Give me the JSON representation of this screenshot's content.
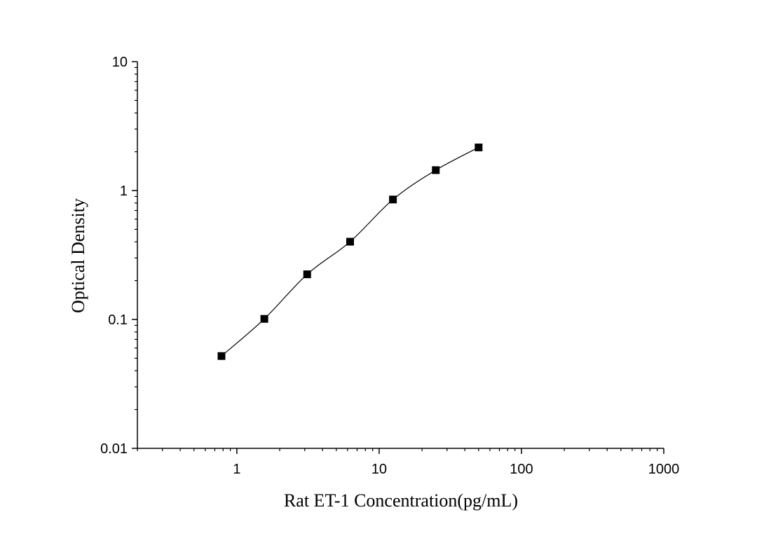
{
  "chart_data": {
    "type": "scatter",
    "title": "",
    "xlabel": "Rat ET-1 Concentration(pg/mL)",
    "ylabel": "Optical Density",
    "x_scale": "log",
    "y_scale": "log",
    "xlim": [
      0.2,
      1000
    ],
    "ylim": [
      0.01,
      10
    ],
    "x_ticks": [
      {
        "value": 1,
        "label": "1"
      },
      {
        "value": 10,
        "label": "10"
      },
      {
        "value": 100,
        "label": "100"
      },
      {
        "value": 1000,
        "label": "1000"
      }
    ],
    "y_ticks": [
      {
        "value": 0.01,
        "label": "0.01"
      },
      {
        "value": 0.1,
        "label": "0.1"
      },
      {
        "value": 1,
        "label": "1"
      },
      {
        "value": 10,
        "label": "10"
      }
    ],
    "grid": false,
    "legend": "none",
    "marker": "square",
    "fit_line": true,
    "color": "#000000",
    "series": [
      {
        "x": [
          0.78,
          1.56,
          3.12,
          6.25,
          12.5,
          25,
          50
        ],
        "y": [
          0.052,
          0.101,
          0.224,
          0.401,
          0.852,
          1.44,
          2.16
        ]
      }
    ]
  }
}
